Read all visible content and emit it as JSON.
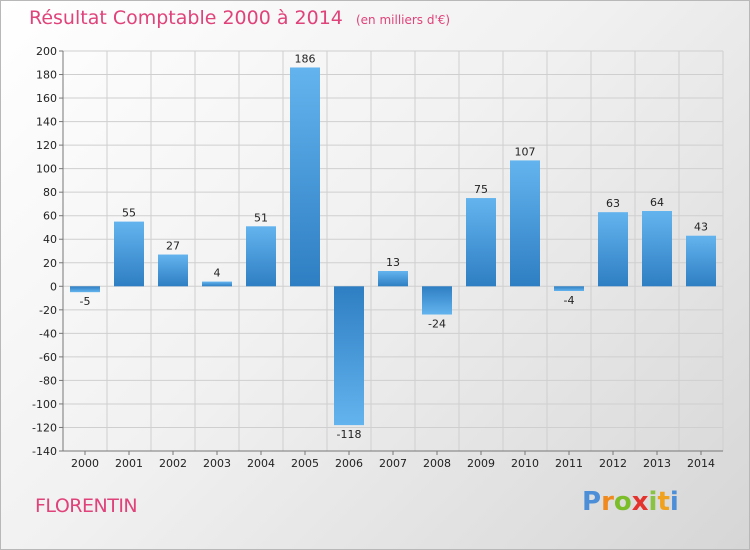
{
  "title": "Résultat Comptable 2000 à 2014",
  "unit_note": "(en milliers d'€)",
  "commune": "FLORENTIN",
  "logo": {
    "letters": [
      "P",
      "r",
      "o",
      "x",
      "i",
      "t",
      "i"
    ],
    "colors": [
      "#4c8fd8",
      "#f08a1e",
      "#7cbd2a",
      "#e4332d",
      "#8ac341",
      "#f0a11e",
      "#4c8fd8"
    ]
  },
  "colors": {
    "title": "#e0427a",
    "bar_light": "#63b4ee",
    "bar_dark": "#2e7ec3",
    "grid": "#cfcfcf"
  },
  "chart_data": {
    "type": "bar",
    "categories": [
      "2000",
      "2001",
      "2002",
      "2003",
      "2004",
      "2005",
      "2006",
      "2007",
      "2008",
      "2009",
      "2010",
      "2011",
      "2012",
      "2013",
      "2014"
    ],
    "values": [
      -5,
      55,
      27,
      4,
      51,
      186,
      -118,
      13,
      -24,
      75,
      107,
      -4,
      63,
      64,
      43
    ],
    "ylim": [
      -140,
      200
    ],
    "yticks": [
      200,
      180,
      160,
      140,
      120,
      100,
      80,
      60,
      40,
      20,
      0,
      -20,
      -40,
      -60,
      -80,
      -100,
      -120,
      -140
    ],
    "grid": true,
    "title": "Résultat Comptable 2000 à 2014",
    "xlabel": "",
    "ylabel": ""
  }
}
